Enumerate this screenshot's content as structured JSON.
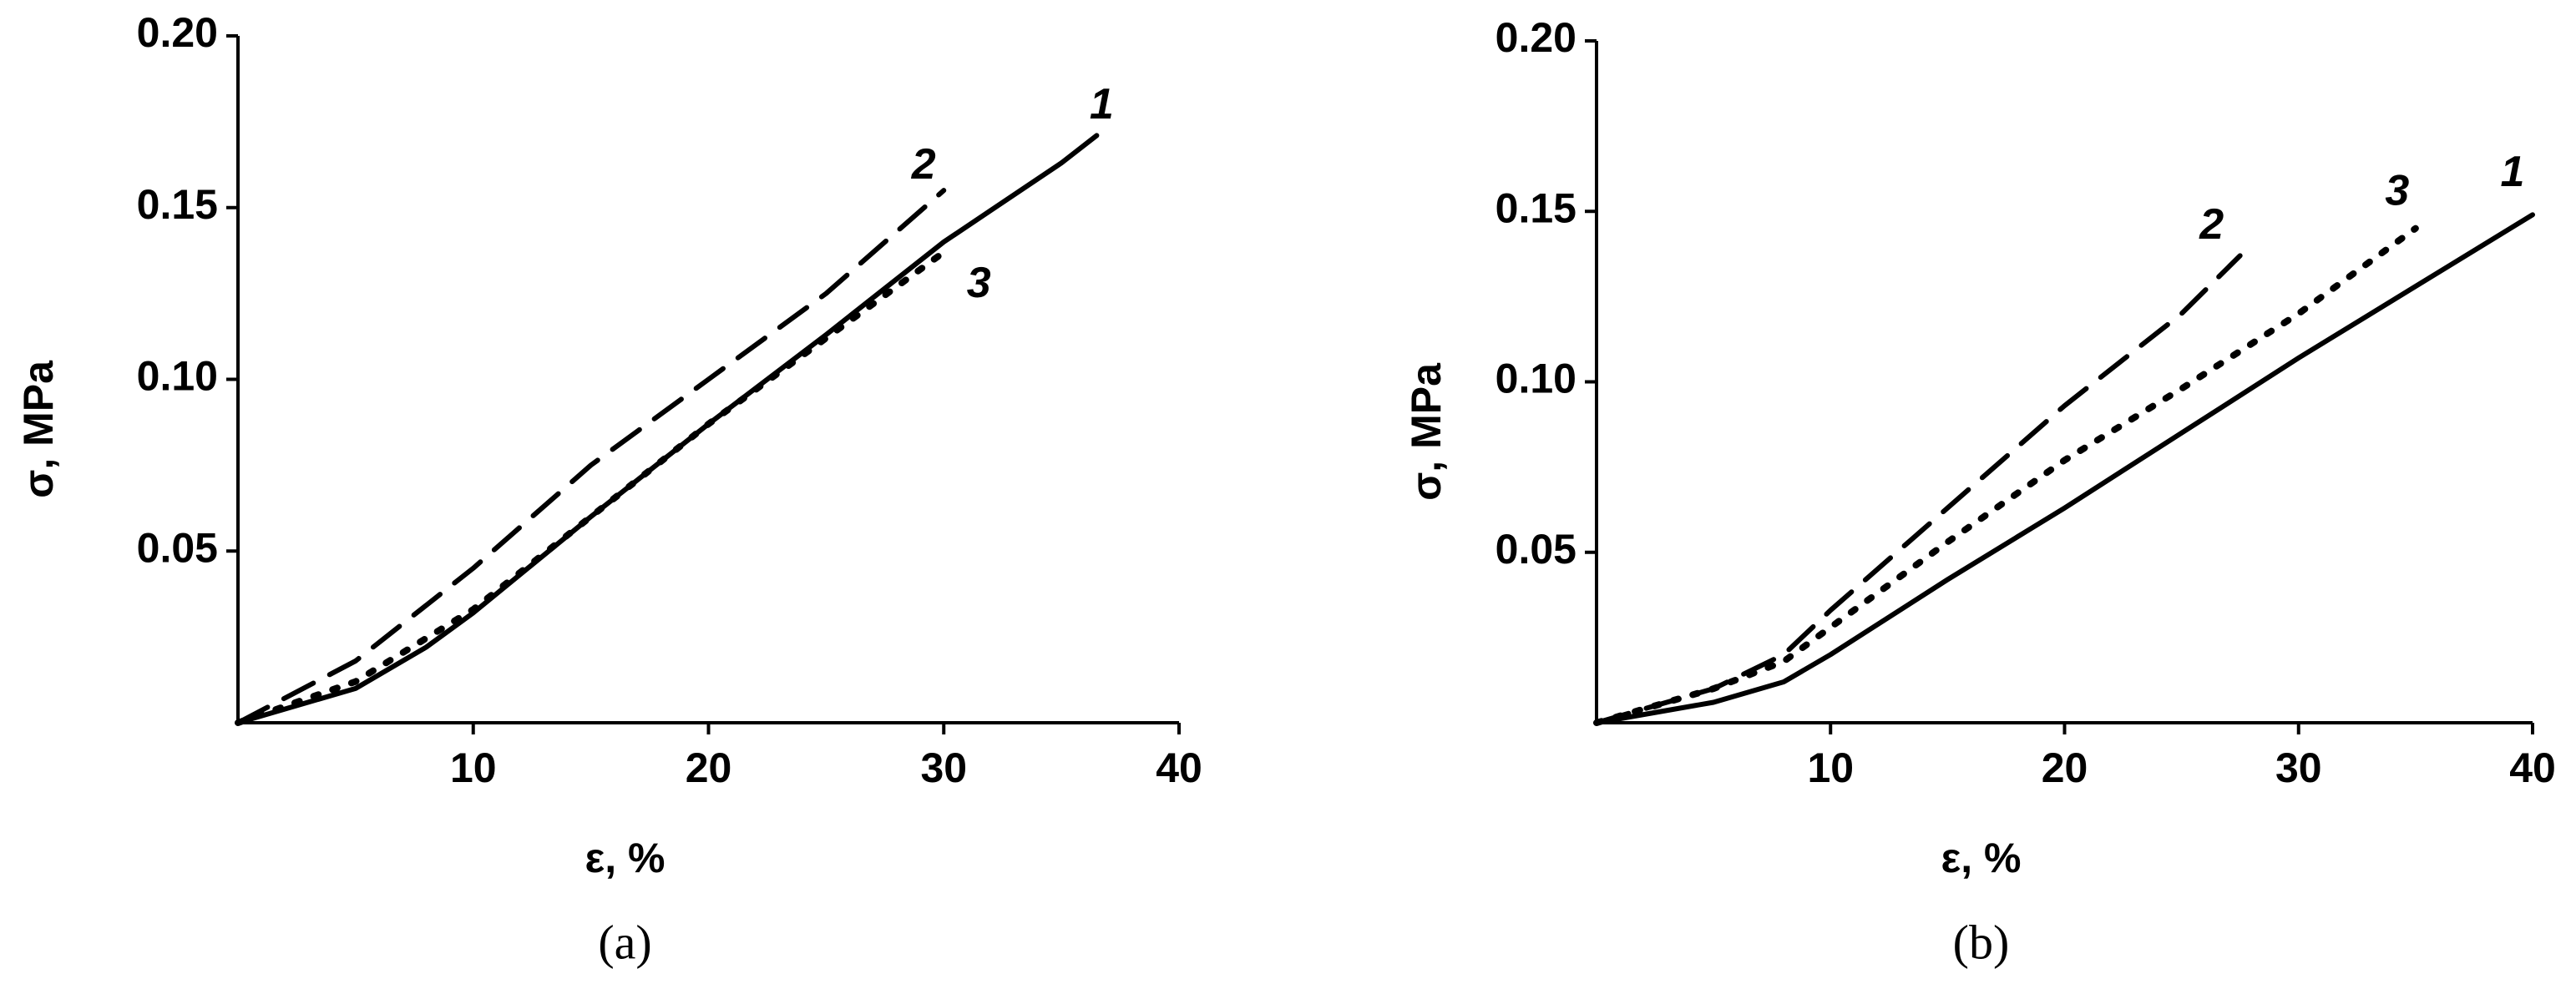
{
  "chart_data": [
    {
      "type": "line",
      "caption": "(a)",
      "x_label": "ε, %",
      "y_label": "σ, MPa",
      "xlim": [
        0,
        40
      ],
      "ylim": [
        0,
        0.2
      ],
      "xticks": [
        10,
        20,
        30,
        40
      ],
      "yticks": [
        0.05,
        {
          "value": 0.1,
          "label": "0.10"
        },
        0.15,
        {
          "value": 0.2,
          "label": "0.20"
        }
      ],
      "series": [
        {
          "name": "1",
          "color": "#000000",
          "style": "solid",
          "x": [
            0,
            5,
            8,
            10,
            15,
            20,
            25,
            30,
            35,
            36.5
          ],
          "values": [
            0,
            0.01,
            0.022,
            0.032,
            0.06,
            0.087,
            0.113,
            0.14,
            0.163,
            0.171
          ]
        },
        {
          "name": "2",
          "color": "#000000",
          "style": "dashed",
          "x": [
            0,
            5,
            10,
            15,
            20,
            25,
            30
          ],
          "values": [
            0,
            0.018,
            0.045,
            0.075,
            0.1,
            0.125,
            0.155
          ]
        },
        {
          "name": "3",
          "color": "#000000",
          "style": "dotted",
          "x": [
            0,
            5,
            10,
            15,
            20,
            25,
            30
          ],
          "values": [
            0,
            0.012,
            0.033,
            0.06,
            0.087,
            0.112,
            0.137
          ]
        }
      ]
    },
    {
      "type": "line",
      "caption": "(b)",
      "x_label": "ε, %",
      "y_label": "σ, MPa",
      "xlim": [
        0,
        40
      ],
      "ylim": [
        0,
        0.2
      ],
      "xticks": [
        10,
        20,
        30,
        40
      ],
      "yticks": [
        0.05,
        {
          "value": 0.1,
          "label": "0.10"
        },
        0.15,
        {
          "value": 0.2,
          "label": "0.20"
        }
      ],
      "series": [
        {
          "name": "1",
          "color": "#000000",
          "style": "solid",
          "x": [
            0,
            5,
            8,
            10,
            15,
            20,
            25,
            30,
            35,
            40
          ],
          "values": [
            0,
            0.006,
            0.012,
            0.02,
            0.042,
            0.063,
            0.085,
            0.107,
            0.128,
            0.149
          ]
        },
        {
          "name": "2",
          "color": "#000000",
          "style": "dashed",
          "x": [
            0,
            5,
            8,
            10,
            15,
            20,
            25,
            27.5
          ],
          "values": [
            0,
            0.01,
            0.02,
            0.033,
            0.063,
            0.093,
            0.12,
            0.137
          ]
        },
        {
          "name": "3",
          "color": "#000000",
          "style": "dotted",
          "x": [
            0,
            5,
            8,
            10,
            15,
            20,
            25,
            30,
            35
          ],
          "values": [
            0,
            0.01,
            0.018,
            0.028,
            0.053,
            0.077,
            0.098,
            0.12,
            0.145
          ]
        }
      ]
    }
  ]
}
